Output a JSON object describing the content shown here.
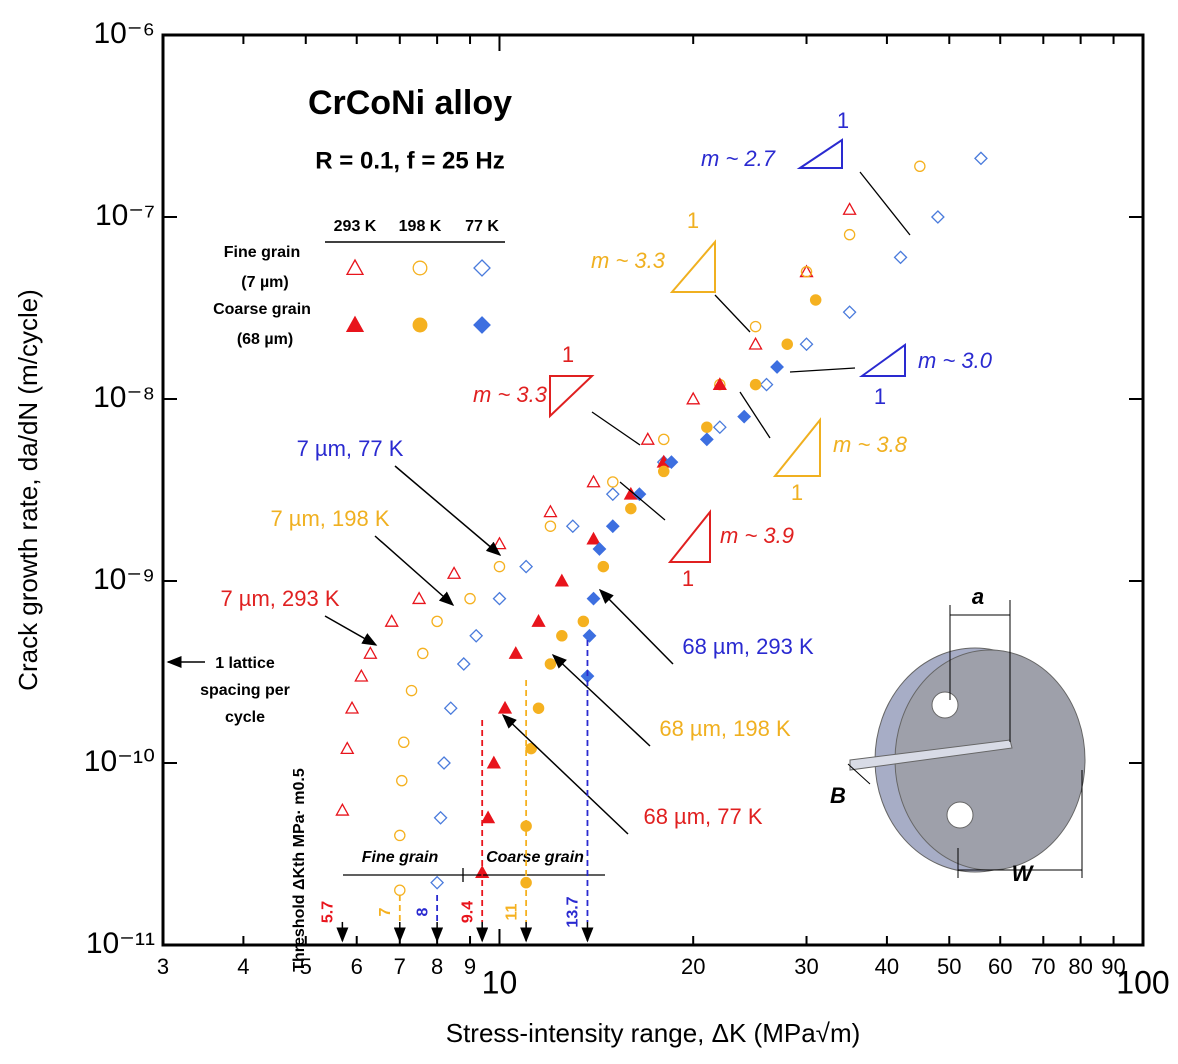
{
  "chart_data": {
    "type": "scatter",
    "title": "CrCoNi alloy",
    "subtitle": "R = 0.1, f = 25 Hz",
    "x_label": "Stress-intensity range, ΔK (MPa√m)",
    "y_label": "Crack growth rate, da/dN (m/cycle)",
    "log_x": true,
    "log_y": true,
    "xlim": [
      3,
      100
    ],
    "ylim": [
      1e-11,
      1e-06
    ],
    "xticks": [
      3,
      4,
      5,
      6,
      7,
      8,
      9,
      10,
      20,
      30,
      40,
      50,
      60,
      70,
      80,
      90,
      100
    ],
    "yticks": [
      {
        "value": 1e-11,
        "label": "10⁻¹¹"
      },
      {
        "value": 1e-10,
        "label": "10⁻¹⁰"
      },
      {
        "value": 1e-09,
        "label": "10⁻⁹"
      },
      {
        "value": 1e-08,
        "label": "10⁻⁸"
      },
      {
        "value": 1e-07,
        "label": "10⁻⁷"
      },
      {
        "value": 1e-06,
        "label": "10⁻⁶"
      }
    ],
    "legend": {
      "columns": [
        "293 K",
        "198 K",
        "77 K"
      ],
      "rows": [
        {
          "label": "Fine grain",
          "sub": "(7 µm)"
        },
        {
          "label": "Coarse grain",
          "sub": "(68 µm)"
        }
      ]
    },
    "series": [
      {
        "name": "7 µm, 293 K",
        "color": "#e8141c",
        "marker": "triangle",
        "filled": false,
        "x": [
          5.7,
          5.8,
          5.9,
          6.1,
          6.3,
          6.8,
          7.5,
          8.5,
          10,
          12,
          14,
          17,
          20,
          25,
          30,
          35
        ],
        "values": [
          5.5e-11,
          1.2e-10,
          2e-10,
          3e-10,
          4e-10,
          6e-10,
          8e-10,
          1.1e-09,
          1.6e-09,
          2.4e-09,
          3.5e-09,
          6e-09,
          1e-08,
          2e-08,
          5e-08,
          1.1e-07
        ]
      },
      {
        "name": "7 µm, 198 K",
        "color": "#f5b120",
        "marker": "circle",
        "filled": false,
        "x": [
          7,
          7,
          7.05,
          7.1,
          7.3,
          7.6,
          8,
          9,
          10,
          12,
          15,
          18,
          22,
          25,
          30,
          35,
          45
        ],
        "values": [
          2e-11,
          4e-11,
          8e-11,
          1.3e-10,
          2.5e-10,
          4e-10,
          6e-10,
          8e-10,
          1.2e-09,
          2e-09,
          3.5e-09,
          6e-09,
          1.2e-08,
          2.5e-08,
          5e-08,
          8e-08,
          1.9e-07
        ]
      },
      {
        "name": "7 µm, 77 K",
        "color": "#4a7bdc",
        "marker": "diamond",
        "filled": false,
        "x": [
          8,
          8.1,
          8.2,
          8.4,
          8.8,
          9.2,
          10,
          11,
          13,
          15,
          18,
          22,
          26,
          30,
          35,
          42,
          48,
          56
        ],
        "values": [
          2.2e-11,
          5e-11,
          1e-10,
          2e-10,
          3.5e-10,
          5e-10,
          8e-10,
          1.2e-09,
          2e-09,
          3e-09,
          4.5e-09,
          7e-09,
          1.2e-08,
          2e-08,
          3e-08,
          6e-08,
          1e-07,
          2.1e-07
        ]
      },
      {
        "name": "68 µm, 293 K",
        "color": "#e8141c",
        "marker": "triangle",
        "filled": true,
        "x": [
          9.4,
          9.6,
          9.8,
          10.2,
          10.6,
          11.5,
          12.5,
          14,
          16,
          18,
          22
        ],
        "values": [
          2.5e-11,
          5e-11,
          1e-10,
          2e-10,
          4e-10,
          6e-10,
          1e-09,
          1.7e-09,
          3e-09,
          4.5e-09,
          1.2e-08
        ]
      },
      {
        "name": "68 µm, 198 K",
        "color": "#f5b120",
        "marker": "circle",
        "filled": true,
        "x": [
          11,
          11,
          11.2,
          11.5,
          12,
          12.5,
          13.5,
          14.5,
          16,
          18,
          21,
          25,
          28,
          31
        ],
        "values": [
          2.2e-11,
          4.5e-11,
          1.2e-10,
          2e-10,
          3.5e-10,
          5e-10,
          6e-10,
          1.2e-09,
          2.5e-09,
          4e-09,
          7e-09,
          1.2e-08,
          2e-08,
          3.5e-08
        ]
      },
      {
        "name": "68 µm, 77 K",
        "color": "#3d6fe0",
        "marker": "diamond",
        "filled": true,
        "x": [
          13.7,
          13.8,
          14,
          14.3,
          15,
          16.5,
          18.5,
          21,
          24,
          27
        ],
        "values": [
          3e-10,
          5e-10,
          8e-10,
          1.5e-09,
          2e-09,
          3e-09,
          4.5e-09,
          6e-09,
          8e-09,
          1.5e-08
        ]
      }
    ],
    "slopes": [
      "m ~ 2.7",
      "m ~ 3.3",
      "m ~ 3.0",
      "m ~ 3.3",
      "m ~ 3.8",
      "m ~ 3.9"
    ],
    "slope_run": "1",
    "lattice_note": [
      "1 lattice",
      "spacing per",
      "cycle"
    ],
    "thresholds": {
      "title": "Threshold ΔKth MPa· m0.5",
      "groups": [
        "Fine grain",
        "Coarse grain"
      ],
      "values": [
        5.7,
        7,
        8,
        9.4,
        11,
        13.7
      ],
      "colors": [
        "#e8141c",
        "#f5b120",
        "#2a2ad0",
        "#e8141c",
        "#f5b120",
        "#2a2ad0"
      ]
    },
    "specimen": {
      "a": "a",
      "B": "B",
      "W": "W"
    }
  }
}
